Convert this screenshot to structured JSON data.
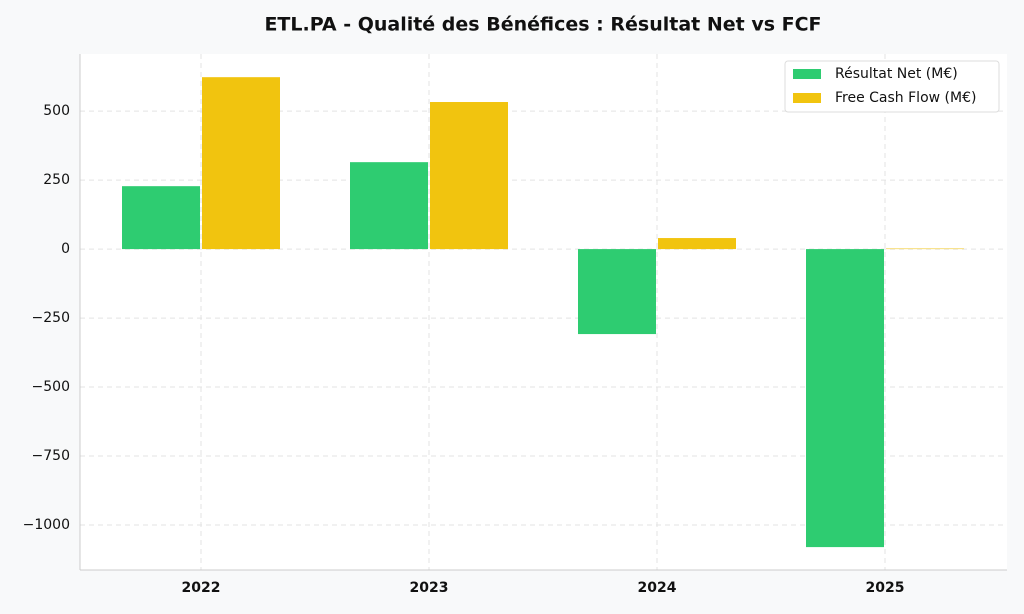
{
  "chart_data": {
    "type": "bar",
    "title": "ETL.PA - Qualité des Bénéfices : Résultat Net vs FCF",
    "categories": [
      "2022",
      "2023",
      "2024",
      "2025"
    ],
    "series": [
      {
        "name": "Résultat Net (M€)",
        "color": "#2ecc71",
        "values": [
          228,
          315,
          -308,
          -1080
        ]
      },
      {
        "name": "Free Cash Flow (M€)",
        "color": "#f1c40f",
        "values": [
          623,
          533,
          40,
          2
        ]
      }
    ],
    "ylim": [
      -1163,
      707
    ],
    "yticks": [
      {
        "value": -1000,
        "label": "−1000"
      },
      {
        "value": -750,
        "label": "−750"
      },
      {
        "value": -500,
        "label": "−500"
      },
      {
        "value": -250,
        "label": "−250"
      },
      0,
      250,
      500
    ],
    "grid": true,
    "legend": "upper right"
  }
}
